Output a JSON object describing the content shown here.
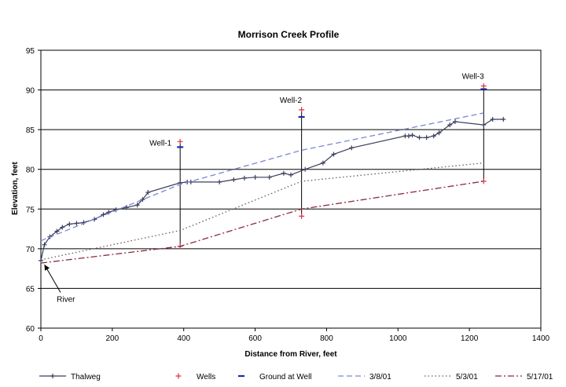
{
  "chart_data": {
    "type": "line",
    "title": "Morrison Creek Profile",
    "xlabel": "Distance from River, feet",
    "ylabel": "Elevation, feet",
    "xlim": [
      0,
      1400
    ],
    "ylim": [
      60,
      95
    ],
    "x_ticks": [
      "0",
      "200",
      "400",
      "600",
      "800",
      "1000",
      "1200",
      "1400"
    ],
    "y_ticks": [
      "60",
      "65",
      "70",
      "75",
      "80",
      "85",
      "90",
      "95"
    ],
    "grid": "horizontal",
    "legend_position": "bottom",
    "series": [
      {
        "name": "Thalweg",
        "style": "solid-plus",
        "color": "#3a3f5c",
        "x": [
          0,
          10,
          25,
          45,
          60,
          80,
          100,
          120,
          150,
          175,
          190,
          210,
          240,
          270,
          285,
          300,
          390,
          410,
          420,
          500,
          540,
          570,
          600,
          640,
          680,
          700,
          740,
          790,
          820,
          870,
          1020,
          1030,
          1040,
          1060,
          1080,
          1100,
          1115,
          1145,
          1160,
          1240,
          1265,
          1295
        ],
        "y": [
          68.5,
          70.5,
          71.5,
          72.2,
          72.7,
          73.1,
          73.2,
          73.3,
          73.7,
          74.3,
          74.6,
          74.9,
          75.2,
          75.5,
          76.2,
          77.1,
          78.3,
          78.4,
          78.4,
          78.4,
          78.7,
          78.9,
          79.0,
          79.0,
          79.5,
          79.3,
          80.0,
          80.8,
          81.9,
          82.7,
          84.2,
          84.2,
          84.3,
          84.0,
          84.0,
          84.2,
          84.6,
          85.6,
          86.0,
          85.6,
          86.3,
          86.3
        ]
      },
      {
        "name": "Wells",
        "style": "marker-plus",
        "color": "#e0304a",
        "x": [
          390,
          390,
          730,
          730,
          1240,
          1240
        ],
        "y": [
          83.5,
          70.3,
          87.5,
          74.1,
          90.5,
          78.5
        ]
      },
      {
        "name": "Ground at Well",
        "style": "marker-dash",
        "color": "#1d2aa8",
        "x": [
          390,
          730,
          1240
        ],
        "y": [
          82.8,
          86.6,
          90.1
        ]
      },
      {
        "name": "3/8/01",
        "style": "dashed",
        "color": "#7b86d6",
        "x": [
          0,
          390,
          730,
          1240
        ],
        "y": [
          71.0,
          78.1,
          82.4,
          87.1
        ]
      },
      {
        "name": "5/3/01",
        "style": "dotted",
        "color": "#6a5a5a",
        "x": [
          0,
          390,
          730,
          1240
        ],
        "y": [
          68.6,
          72.3,
          78.5,
          80.8
        ]
      },
      {
        "name": "5/17/01",
        "style": "dash-dot",
        "color": "#8b2a3a",
        "x": [
          0,
          390,
          730,
          1240
        ],
        "y": [
          68.2,
          70.3,
          75.0,
          78.5
        ]
      }
    ],
    "well_lines": [
      {
        "x": 390,
        "y_top": 83.5,
        "y_bottom": 70.3
      },
      {
        "x": 730,
        "y_top": 87.5,
        "y_bottom": 74.1
      },
      {
        "x": 1240,
        "y_top": 90.5,
        "y_bottom": 78.5
      }
    ],
    "annotations": [
      {
        "text": "Well-1",
        "x": 335,
        "y": 83.0
      },
      {
        "text": "Well-2",
        "x": 700,
        "y": 88.4
      },
      {
        "text": "Well-3",
        "x": 1210,
        "y": 91.4
      },
      {
        "text": "River",
        "x": 70,
        "y": 63.3,
        "arrow_to": [
          10,
          68.0
        ],
        "arrow_from": [
          55,
          64.5
        ]
      }
    ]
  }
}
